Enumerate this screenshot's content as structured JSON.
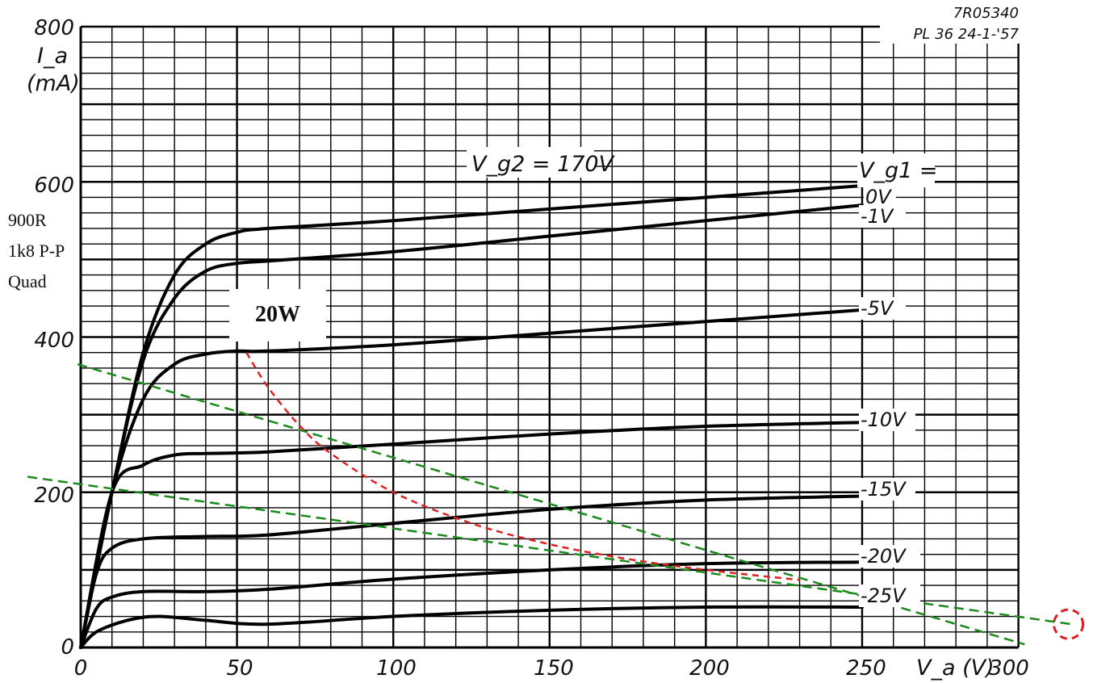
{
  "chart_data": {
    "type": "line",
    "title": "",
    "stamp": [
      "7R05340",
      "PL 36  24-1-'57"
    ],
    "xlabel": "V_a (V)",
    "ylabel_lines": [
      "I_a",
      "(mA)"
    ],
    "xlim": [
      0,
      300
    ],
    "ylim": [
      0,
      800
    ],
    "x_ticks": [
      "0",
      "50",
      "100",
      "150",
      "200",
      "250",
      "300"
    ],
    "y_ticks": [
      "0",
      "200",
      "400",
      "600",
      "800"
    ],
    "grid": true,
    "annotation_vg2": "V_g2 = 170V",
    "legend_header": "V_g1 =",
    "series": [
      {
        "name": "0V",
        "points": [
          [
            0,
            0
          ],
          [
            10,
            200
          ],
          [
            20,
            380
          ],
          [
            30,
            480
          ],
          [
            40,
            520
          ],
          [
            50,
            535
          ],
          [
            60,
            540
          ],
          [
            100,
            550
          ],
          [
            150,
            565
          ],
          [
            200,
            580
          ],
          [
            250,
            595
          ]
        ]
      },
      {
        "name": "-1V",
        "points": [
          [
            0,
            0
          ],
          [
            10,
            200
          ],
          [
            20,
            370
          ],
          [
            30,
            450
          ],
          [
            40,
            485
          ],
          [
            50,
            495
          ],
          [
            60,
            498
          ],
          [
            100,
            510
          ],
          [
            150,
            530
          ],
          [
            200,
            550
          ],
          [
            250,
            570
          ]
        ]
      },
      {
        "name": "-5V",
        "points": [
          [
            0,
            0
          ],
          [
            10,
            200
          ],
          [
            20,
            320
          ],
          [
            30,
            365
          ],
          [
            40,
            378
          ],
          [
            50,
            382
          ],
          [
            60,
            382
          ],
          [
            100,
            390
          ],
          [
            150,
            405
          ],
          [
            200,
            420
          ],
          [
            250,
            435
          ]
        ]
      },
      {
        "name": "-10V",
        "points": [
          [
            0,
            0
          ],
          [
            10,
            200
          ],
          [
            20,
            235
          ],
          [
            30,
            248
          ],
          [
            40,
            250
          ],
          [
            60,
            252
          ],
          [
            100,
            262
          ],
          [
            150,
            275
          ],
          [
            200,
            285
          ],
          [
            250,
            290
          ]
        ]
      },
      {
        "name": "-15V",
        "points": [
          [
            0,
            0
          ],
          [
            5,
            95
          ],
          [
            10,
            128
          ],
          [
            20,
            140
          ],
          [
            40,
            143
          ],
          [
            60,
            145
          ],
          [
            100,
            160
          ],
          [
            150,
            178
          ],
          [
            200,
            190
          ],
          [
            250,
            195
          ]
        ]
      },
      {
        "name": "-20V",
        "points": [
          [
            0,
            0
          ],
          [
            5,
            50
          ],
          [
            10,
            65
          ],
          [
            20,
            72
          ],
          [
            40,
            72
          ],
          [
            60,
            75
          ],
          [
            100,
            88
          ],
          [
            150,
            100
          ],
          [
            200,
            108
          ],
          [
            250,
            110
          ]
        ]
      },
      {
        "name": "-25V",
        "points": [
          [
            0,
            0
          ],
          [
            5,
            20
          ],
          [
            15,
            35
          ],
          [
            25,
            40
          ],
          [
            40,
            35
          ],
          [
            60,
            30
          ],
          [
            100,
            40
          ],
          [
            150,
            48
          ],
          [
            200,
            52
          ],
          [
            250,
            52
          ]
        ]
      }
    ],
    "overlays": [
      {
        "kind": "load-line",
        "color": "#1a8a1a",
        "points": [
          [
            -1,
            365
          ],
          [
            302,
            4
          ]
        ]
      },
      {
        "kind": "load-line",
        "color": "#1a8a1a",
        "points": [
          [
            -17,
            220
          ],
          [
            317,
            30
          ]
        ]
      },
      {
        "kind": "power-hyperbola",
        "color": "#e02020",
        "points": [
          [
            53,
            380
          ],
          [
            60,
            335
          ],
          [
            70,
            286
          ],
          [
            80,
            250
          ],
          [
            100,
            200
          ],
          [
            125,
            160
          ],
          [
            150,
            133
          ],
          [
            175,
            114
          ],
          [
            200,
            100
          ],
          [
            230,
            87
          ]
        ]
      }
    ],
    "marker": {
      "kind": "dashed-circle",
      "color": "#e02020",
      "at": [
        316,
        30
      ]
    },
    "notes": [
      "900R",
      "1k8 P-P",
      "Quad"
    ],
    "power_label": "20W"
  }
}
